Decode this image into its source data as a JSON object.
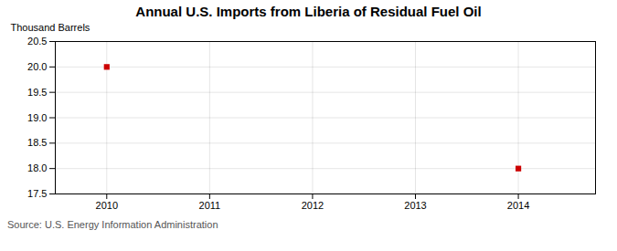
{
  "chart_data": {
    "type": "scatter",
    "title": "Annual U.S. Imports from Liberia of Residual Fuel Oil",
    "ylabel": "Thousand Barrels",
    "source": "Source: U.S. Energy Information Administration",
    "x": [
      2010,
      2014
    ],
    "values": [
      20.0,
      18.0
    ],
    "color": "#cc0000",
    "marker": "square",
    "xlim": [
      2009.5,
      2014.75
    ],
    "xticks": [
      2010,
      2011,
      2012,
      2013,
      2014
    ],
    "ylim": [
      17.5,
      20.5
    ],
    "yticks": [
      17.5,
      {
        "value": 18,
        "label": "18.0"
      },
      18.5,
      {
        "value": 19,
        "label": "19.0"
      },
      19.5,
      {
        "value": 20,
        "label": "20.0"
      },
      20.5
    ],
    "grid": true
  }
}
